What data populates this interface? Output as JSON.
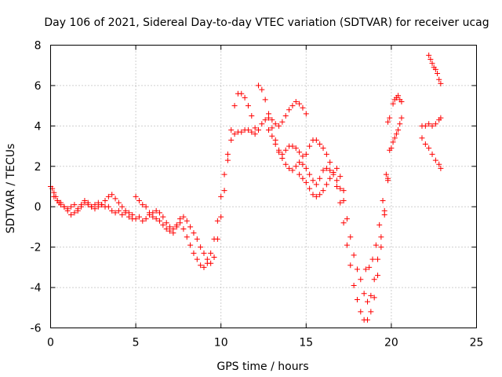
{
  "chart_data": {
    "type": "scatter",
    "title": "Day 106 of 2021, Sidereal Day-to-day VTEC variation (SDTVAR) for receiver ucag",
    "xlabel": "GPS time / hours",
    "ylabel": "SDTVAR / TECUs",
    "xlim": [
      0,
      25
    ],
    "ylim": [
      -6,
      8
    ],
    "xticks": [
      "0",
      "5",
      "10",
      "15",
      "20",
      "25"
    ],
    "yticks": [
      "-6",
      "-4",
      "-2",
      "0",
      "2",
      "4",
      "6",
      "8"
    ],
    "grid": true,
    "marker": "plus",
    "color": "#ff0000",
    "series": [
      {
        "x": [
          0.0,
          0.1,
          0.2,
          0.3,
          0.4,
          0.5,
          0.6,
          0.8,
          1.0,
          1.2,
          1.4,
          1.6,
          1.8,
          2.0,
          2.2,
          2.4,
          2.6,
          2.8,
          3.0,
          3.2,
          3.4,
          3.6,
          3.8,
          4.0,
          4.2,
          4.4,
          4.6,
          4.8,
          5.0,
          5.2,
          5.4,
          5.6,
          5.8,
          6.0,
          6.2,
          6.4,
          6.6,
          6.8,
          7.0,
          7.2,
          7.4,
          7.6,
          7.8,
          8.0,
          8.2,
          8.4,
          8.6,
          8.8,
          9.0,
          9.2,
          9.4,
          9.6,
          9.8,
          10.0,
          10.2,
          10.4,
          10.6,
          10.8,
          11.0,
          11.2,
          11.4,
          11.6,
          11.8,
          12.0
        ],
        "y": [
          1.0,
          0.9,
          0.7,
          0.5,
          0.3,
          0.2,
          0.1,
          0.0,
          -0.1,
          0.0,
          0.1,
          -0.1,
          0.0,
          0.2,
          0.1,
          0.0,
          -0.1,
          0.0,
          0.1,
          0.0,
          0.0,
          -0.2,
          -0.3,
          -0.2,
          -0.4,
          -0.3,
          -0.5,
          -0.6,
          -0.6,
          -0.5,
          -0.7,
          -0.6,
          -0.4,
          -0.3,
          -0.2,
          -0.3,
          -0.5,
          -0.8,
          -1.0,
          -1.1,
          -0.9,
          -0.6,
          -0.5,
          -0.7,
          -1.0,
          -1.3,
          -1.6,
          -2.0,
          -2.3,
          -2.6,
          -2.8,
          -2.5,
          -1.6,
          -0.5,
          0.8,
          2.3,
          3.8,
          5.0,
          5.6,
          5.6,
          5.4,
          5.0,
          4.5,
          3.9
        ]
      },
      {
        "x": [
          0.2,
          0.4,
          0.6,
          0.8,
          1.0,
          1.2,
          1.4,
          1.6,
          1.8,
          2.0,
          2.2,
          2.4,
          2.6,
          2.8,
          3.0,
          3.2,
          3.4,
          3.6,
          3.8,
          4.0,
          4.2,
          4.4,
          4.6,
          4.8,
          5.0,
          5.2,
          5.4,
          5.6,
          5.8,
          6.0,
          6.2,
          6.4,
          6.6,
          6.8,
          7.0,
          7.2,
          7.4,
          7.6,
          7.8,
          8.0,
          8.2,
          8.4,
          8.6,
          8.8,
          9.0,
          9.2,
          9.4,
          9.6,
          9.8,
          10.0,
          10.2,
          10.4,
          10.6,
          10.8,
          11.0,
          11.2,
          11.4,
          11.6,
          11.8,
          12.0,
          12.2,
          12.4,
          12.6,
          12.8,
          13.0,
          13.2,
          13.4,
          13.6,
          13.8,
          14.0,
          14.2,
          14.4,
          14.6,
          14.8,
          15.0
        ],
        "y": [
          0.5,
          0.3,
          0.2,
          0.0,
          -0.2,
          -0.4,
          -0.3,
          -0.2,
          0.1,
          0.3,
          0.2,
          0.0,
          0.1,
          0.2,
          0.1,
          0.3,
          0.5,
          0.6,
          0.4,
          0.2,
          0.0,
          -0.2,
          -0.3,
          -0.4,
          0.5,
          0.3,
          0.1,
          0.0,
          -0.3,
          -0.5,
          -0.6,
          -0.7,
          -0.9,
          -1.1,
          -1.2,
          -1.3,
          -1.0,
          -0.8,
          -1.1,
          -1.5,
          -1.9,
          -2.3,
          -2.6,
          -2.9,
          -3.0,
          -2.8,
          -2.3,
          -1.6,
          -0.7,
          0.5,
          1.6,
          2.6,
          3.3,
          3.6,
          3.7,
          3.7,
          3.8,
          3.8,
          3.7,
          3.6,
          3.8,
          4.1,
          4.3,
          4.4,
          4.3,
          4.1,
          4.0,
          4.2,
          4.5,
          4.8,
          5.0,
          5.2,
          5.1,
          4.9,
          4.6
        ]
      },
      {
        "x": [
          12.2,
          12.4,
          12.6,
          12.8,
          13.0,
          13.2,
          13.4,
          13.6,
          13.8,
          14.0,
          14.2,
          14.4,
          14.6,
          14.8,
          15.0,
          15.2,
          15.4,
          15.6,
          15.8,
          16.0,
          16.2,
          16.4,
          16.6,
          16.8,
          17.0,
          17.2,
          17.4,
          17.6,
          17.8,
          18.0,
          18.2,
          18.4,
          18.6,
          18.8,
          19.0,
          19.2,
          19.4,
          19.6,
          19.8
        ],
        "y": [
          6.0,
          5.8,
          5.3,
          4.6,
          3.9,
          3.3,
          2.8,
          2.6,
          2.8,
          3.0,
          3.0,
          2.9,
          2.7,
          2.5,
          2.6,
          3.0,
          3.3,
          3.3,
          3.1,
          2.9,
          2.6,
          2.2,
          1.7,
          1.0,
          0.2,
          -0.8,
          -1.9,
          -2.9,
          -3.9,
          -4.6,
          -5.2,
          -5.6,
          -5.6,
          -5.2,
          -4.5,
          -3.4,
          -2.0,
          -0.4,
          1.3
        ]
      },
      {
        "x": [
          12.8,
          13.0,
          13.2,
          13.4,
          13.6,
          13.8,
          14.0,
          14.2,
          14.4,
          14.6,
          14.8,
          15.0,
          15.2,
          15.4,
          15.6,
          15.8,
          16.0,
          16.2,
          16.4,
          16.6,
          16.8,
          17.0,
          17.2,
          17.4,
          17.6,
          17.8,
          18.0,
          18.2,
          18.4,
          18.6,
          18.8,
          19.0,
          19.2,
          19.4,
          19.6,
          19.8
        ],
        "y": [
          3.8,
          3.5,
          3.1,
          2.7,
          2.4,
          2.1,
          1.9,
          1.8,
          2.0,
          2.2,
          2.1,
          1.9,
          1.6,
          1.3,
          1.1,
          1.4,
          1.8,
          1.9,
          1.8,
          1.6,
          1.3,
          0.9,
          0.3,
          -0.6,
          -1.5,
          -2.4,
          -3.1,
          -3.6,
          -4.3,
          -4.7,
          -4.4,
          -3.6,
          -2.6,
          -1.5,
          -0.2,
          1.4
        ]
      },
      {
        "x": [
          14.6,
          14.8,
          15.0,
          15.2,
          15.4,
          15.6,
          15.8,
          16.0,
          16.2,
          16.4,
          16.6,
          16.8,
          17.0,
          17.2
        ],
        "y": [
          1.6,
          1.4,
          1.2,
          0.9,
          0.6,
          0.5,
          0.6,
          0.8,
          1.1,
          1.4,
          1.7,
          1.9,
          1.5,
          0.8
        ]
      },
      {
        "x": [
          18.5,
          18.7,
          18.9,
          19.1,
          19.3,
          19.5,
          19.7,
          19.9
        ],
        "y": [
          -3.1,
          -3.0,
          -2.6,
          -1.9,
          -0.9,
          0.3,
          1.6,
          2.8
        ]
      },
      {
        "x": [
          19.8,
          19.9
        ],
        "y": [
          4.2,
          4.4
        ]
      },
      {
        "x": [
          20.0,
          20.1,
          20.2,
          20.3,
          20.4,
          20.5,
          20.6
        ],
        "y": [
          2.9,
          3.2,
          3.4,
          3.6,
          3.8,
          4.1,
          4.4
        ]
      },
      {
        "x": [
          20.1,
          20.2,
          20.3,
          20.4,
          20.5,
          20.6
        ],
        "y": [
          5.1,
          5.3,
          5.4,
          5.5,
          5.3,
          5.2
        ]
      },
      {
        "x": [
          21.8,
          22.0,
          22.2,
          22.4,
          22.6,
          22.8,
          22.9
        ],
        "y": [
          4.0,
          4.0,
          4.1,
          4.0,
          4.1,
          4.3,
          4.4
        ]
      },
      {
        "x": [
          21.8,
          22.0,
          22.2,
          22.4,
          22.6,
          22.8,
          22.9
        ],
        "y": [
          3.4,
          3.1,
          2.9,
          2.6,
          2.3,
          2.1,
          1.9
        ]
      },
      {
        "x": [
          22.2,
          22.3,
          22.4,
          22.5,
          22.6,
          22.7,
          22.8,
          22.9
        ],
        "y": [
          7.5,
          7.3,
          7.1,
          6.9,
          6.8,
          6.6,
          6.3,
          6.1
        ]
      }
    ]
  }
}
